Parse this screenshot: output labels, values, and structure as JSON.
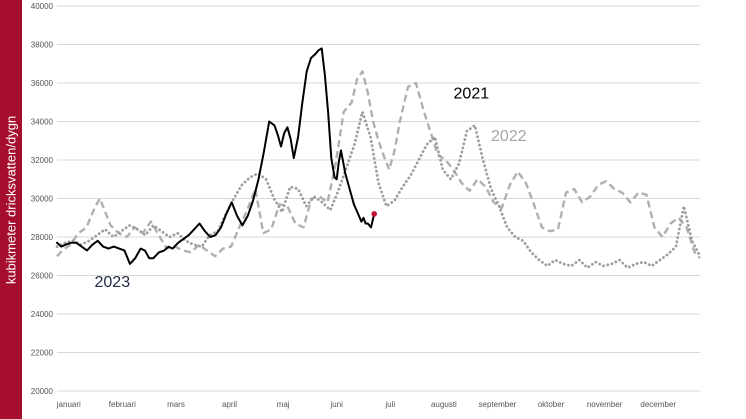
{
  "colors": {
    "sidebar": "#a50e2d",
    "grid": "#d9d9d9",
    "s2023": "#000000",
    "s2022": "#b0b0b0",
    "s2021": "#9e9e9e",
    "endpoint": "#c0102f",
    "label2023": "#1f2a44",
    "label2021": "#000000",
    "label2022": "#a6a6a6"
  },
  "chart_data": {
    "type": "line",
    "ylabel": "kubikmeter dricksvatten/dygn",
    "ylim": [
      20000,
      40000
    ],
    "yticks": [
      20000,
      22000,
      24000,
      26000,
      28000,
      30000,
      32000,
      34000,
      36000,
      38000,
      40000
    ],
    "xlim": [
      0,
      12
    ],
    "months": [
      "januari",
      "februari",
      "mars",
      "april",
      "maj",
      "juni",
      "juli",
      "augusti",
      "september",
      "oktober",
      "november",
      "december"
    ],
    "grid": "horizontal",
    "series": [
      {
        "name": "2023",
        "style": "solid",
        "x": [
          0.0,
          0.08,
          0.16,
          0.26,
          0.36,
          0.46,
          0.56,
          0.66,
          0.76,
          0.86,
          0.96,
          1.06,
          1.16,
          1.26,
          1.36,
          1.46,
          1.56,
          1.64,
          1.72,
          1.8,
          1.9,
          2.0,
          2.08,
          2.16,
          2.26,
          2.36,
          2.46,
          2.56,
          2.66,
          2.76,
          2.86,
          2.96,
          3.06,
          3.16,
          3.26,
          3.36,
          3.46,
          3.56,
          3.66,
          3.76,
          3.86,
          3.96,
          4.06,
          4.12,
          4.18,
          4.24,
          4.3,
          4.36,
          4.42,
          4.5,
          4.58,
          4.66,
          4.74,
          4.82,
          4.88,
          4.94,
          5.0,
          5.06,
          5.12,
          5.18,
          5.22,
          5.26,
          5.3,
          5.38,
          5.46,
          5.54,
          5.62,
          5.68,
          5.72,
          5.76,
          5.8,
          5.86,
          5.92,
          5.98,
          6.04,
          6.08,
          6.12,
          6.16,
          6.2,
          6.24,
          6.28,
          6.34,
          6.4
        ],
        "values": [
          27700,
          27500,
          27600,
          27700,
          27700,
          27500,
          27300,
          27600,
          27800,
          27500,
          27400,
          27500,
          27400,
          27300,
          26600,
          26900,
          27400,
          27300,
          26900,
          26900,
          27200,
          27300,
          27500,
          27400,
          27700,
          27900,
          28100,
          28400,
          28700,
          28300,
          28000,
          28100,
          28500,
          29200,
          29800,
          29100,
          28600,
          29100,
          29900,
          31000,
          32400,
          34000,
          33800,
          33300,
          32700,
          33400,
          33700,
          33100,
          32100,
          33200,
          35000,
          36600,
          37300,
          37500,
          37700,
          37800,
          36400,
          34500,
          32100,
          31100,
          31000,
          31900,
          32500,
          31300,
          30500,
          29700,
          29200,
          28800,
          29000,
          28700,
          28700,
          28500,
          29200,
          29200,
          29200,
          29200,
          29200,
          29200,
          29200,
          29200,
          29200,
          29200,
          29200
        ],
        "end_index": 72
      },
      {
        "name": "2022",
        "style": "dashed",
        "x": [
          0.0,
          0.1,
          0.25,
          0.4,
          0.55,
          0.7,
          0.8,
          0.9,
          1.0,
          1.15,
          1.3,
          1.45,
          1.6,
          1.75,
          1.9,
          2.05,
          2.2,
          2.35,
          2.5,
          2.65,
          2.8,
          2.95,
          3.1,
          3.25,
          3.4,
          3.55,
          3.7,
          3.85,
          4.0,
          4.15,
          4.3,
          4.45,
          4.6,
          4.75,
          4.9,
          5.05,
          5.2,
          5.35,
          5.5,
          5.6,
          5.7,
          5.8,
          5.9,
          6.0,
          6.1,
          6.2,
          6.3,
          6.4,
          6.55,
          6.7,
          6.85,
          7.0,
          7.1,
          7.25,
          7.4,
          7.55,
          7.7,
          7.85,
          8.0,
          8.15,
          8.3,
          8.45,
          8.6,
          8.75,
          8.9,
          9.05,
          9.2,
          9.35,
          9.5,
          9.65,
          9.8,
          9.95,
          10.1,
          10.25,
          10.4,
          10.55,
          10.7,
          10.85,
          11.0,
          11.15,
          11.3,
          11.45,
          11.6,
          11.75,
          11.9,
          12.0
        ],
        "values": [
          27000,
          27300,
          27600,
          28200,
          28500,
          29500,
          30000,
          29300,
          28600,
          28200,
          28000,
          28500,
          28200,
          28800,
          28100,
          27400,
          27500,
          27300,
          27200,
          27600,
          27300,
          27000,
          27400,
          27500,
          28500,
          29400,
          30500,
          28200,
          28400,
          29700,
          29600,
          28700,
          28500,
          30000,
          30100,
          29800,
          31800,
          34500,
          35000,
          36200,
          36600,
          35500,
          34000,
          33000,
          32200,
          31500,
          32500,
          34000,
          35800,
          36000,
          34500,
          33200,
          32300,
          32000,
          31500,
          30800,
          30400,
          31000,
          30600,
          29800,
          29500,
          30700,
          31400,
          30800,
          29700,
          28500,
          28300,
          28400,
          30300,
          30500,
          29800,
          30100,
          30700,
          30900,
          30500,
          30300,
          29800,
          30300,
          30200,
          28500,
          28000,
          28700,
          29000,
          28500,
          27200,
          26900
        ]
      },
      {
        "name": "2021",
        "style": "dotted",
        "x": [
          0.0,
          0.15,
          0.3,
          0.45,
          0.6,
          0.75,
          0.9,
          1.05,
          1.2,
          1.35,
          1.5,
          1.65,
          1.8,
          1.95,
          2.1,
          2.25,
          2.4,
          2.55,
          2.7,
          2.85,
          3.0,
          3.15,
          3.3,
          3.45,
          3.6,
          3.75,
          3.9,
          4.05,
          4.2,
          4.35,
          4.5,
          4.65,
          4.8,
          4.95,
          5.1,
          5.25,
          5.4,
          5.55,
          5.7,
          5.85,
          6.0,
          6.15,
          6.3,
          6.45,
          6.6,
          6.75,
          6.9,
          7.05,
          7.2,
          7.35,
          7.5,
          7.65,
          7.8,
          7.95,
          8.1,
          8.25,
          8.4,
          8.55,
          8.7,
          8.85,
          9.0,
          9.15,
          9.3,
          9.45,
          9.6,
          9.75,
          9.9,
          10.05,
          10.2,
          10.35,
          10.5,
          10.65,
          10.8,
          10.95,
          11.1,
          11.25,
          11.4,
          11.55,
          11.7,
          11.85,
          12.0
        ],
        "values": [
          27500,
          27700,
          27800,
          27600,
          27800,
          28100,
          28400,
          28000,
          28300,
          28600,
          28400,
          28100,
          28600,
          28300,
          28000,
          28200,
          27800,
          27600,
          27500,
          28100,
          28300,
          29200,
          30000,
          30700,
          31100,
          31300,
          31000,
          30000,
          29300,
          30600,
          30500,
          29600,
          30100,
          29800,
          29400,
          30400,
          31600,
          32800,
          34500,
          33200,
          30800,
          29600,
          29900,
          30600,
          31200,
          32000,
          32800,
          33200,
          31500,
          31000,
          31800,
          33500,
          33800,
          32000,
          30500,
          29600,
          28500,
          28000,
          27800,
          27200,
          26800,
          26500,
          26800,
          26600,
          26500,
          26800,
          26400,
          26700,
          26500,
          26600,
          26800,
          26400,
          26600,
          26700,
          26500,
          26800,
          27100,
          27500,
          29600,
          27800,
          27000
        ]
      }
    ],
    "annotations": [
      {
        "text": "2023",
        "x": 0.7,
        "y": 25400
      },
      {
        "text": "2021",
        "x": 7.4,
        "y": 35200
      },
      {
        "text": "2022",
        "x": 8.1,
        "y": 33000
      }
    ]
  }
}
